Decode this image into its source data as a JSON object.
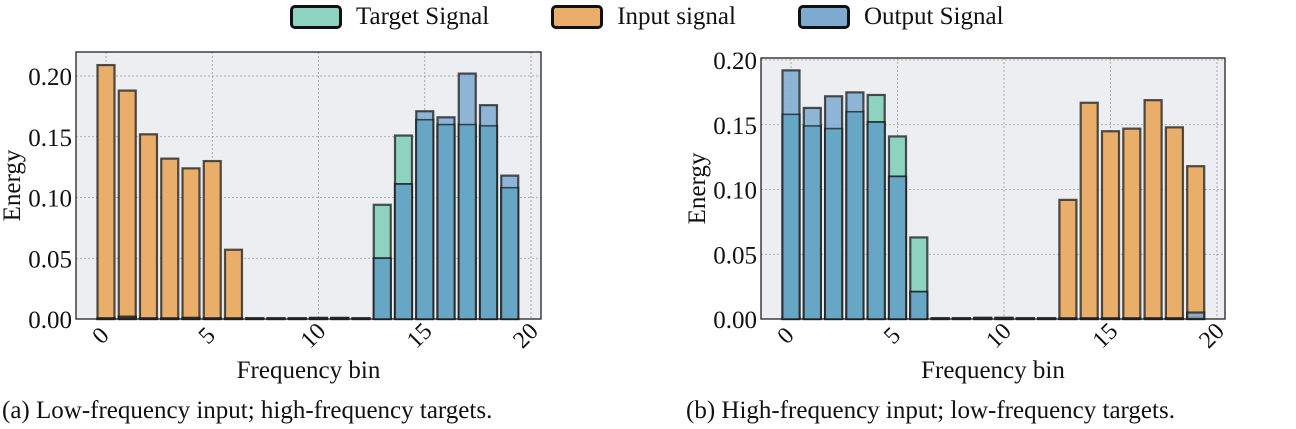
{
  "legend": {
    "items": [
      {
        "label": "Target Signal",
        "color": "#8dd3c0"
      },
      {
        "label": "Input signal",
        "color": "#e8ae6a"
      },
      {
        "label": "Output Signal",
        "color": "#7eaad0"
      }
    ]
  },
  "colors": {
    "target": "#8dd3c0",
    "input": "#e8ae6a",
    "output": "#7eaad0",
    "overlap": "#64a5c4",
    "axes_bg": "#eceef1",
    "edge": "#1a1a1a"
  },
  "chart_data": [
    {
      "type": "bar",
      "caption": "(a) Low-frequency input; high-frequency targets.",
      "xlabel": "Frequency bin",
      "ylabel": "Energy",
      "xlim": [
        -1.3,
        20.3
      ],
      "ylim": [
        0,
        0.22
      ],
      "xticks": [
        0,
        5,
        10,
        15,
        20
      ],
      "xtick_labels": [
        "0",
        "5",
        "10",
        "15",
        "20"
      ],
      "yticks": [
        0.0,
        0.05,
        0.1,
        0.15,
        0.2
      ],
      "ytick_labels": [
        "0.00",
        "0.05",
        "0.10",
        "0.15",
        "0.20"
      ],
      "grid": true,
      "x": [
        0,
        1,
        2,
        3,
        4,
        5,
        6,
        7,
        8,
        9,
        10,
        11,
        12,
        13,
        14,
        15,
        16,
        17,
        18,
        19
      ],
      "series": [
        {
          "name": "Input signal",
          "values": [
            0.209,
            0.188,
            0.152,
            0.132,
            0.124,
            0.13,
            0.057,
            0.0005,
            0.0005,
            0.0005,
            0.001,
            0.001,
            0.0005,
            0,
            0,
            0,
            0,
            0,
            0,
            0
          ]
        },
        {
          "name": "Target Signal",
          "values": [
            0,
            0.002,
            0,
            0,
            0.001,
            0,
            0,
            0,
            0,
            0,
            0,
            0,
            0,
            0.094,
            0.151,
            0.164,
            0.16,
            0.16,
            0.159,
            0.108
          ]
        },
        {
          "name": "Output Signal",
          "values": [
            0,
            0.001,
            0,
            0,
            0,
            0,
            0,
            0,
            0,
            0,
            0,
            0,
            0,
            0.05,
            0.111,
            0.171,
            0.166,
            0.202,
            0.176,
            0.118
          ]
        }
      ]
    },
    {
      "type": "bar",
      "caption": "(b) High-frequency input; low-frequency targets.",
      "xlabel": "Frequency bin",
      "ylabel": "Energy",
      "xlim": [
        -1.3,
        20.3
      ],
      "ylim": [
        0,
        0.2
      ],
      "xticks": [
        0,
        5,
        10,
        15,
        20
      ],
      "xtick_labels": [
        "0",
        "5",
        "10",
        "15",
        "20"
      ],
      "yticks": [
        0.0,
        0.05,
        0.1,
        0.15,
        0.2
      ],
      "ytick_labels": [
        "0.00",
        "0.05",
        "0.10",
        "0.15",
        "0.20"
      ],
      "grid": true,
      "x": [
        0,
        1,
        2,
        3,
        4,
        5,
        6,
        7,
        8,
        9,
        10,
        11,
        12,
        13,
        14,
        15,
        16,
        17,
        18,
        19
      ],
      "series": [
        {
          "name": "Input signal",
          "values": [
            0.001,
            0.001,
            0.001,
            0.001,
            0.001,
            0.001,
            0.005,
            0.0005,
            0.0005,
            0.001,
            0.001,
            0.0005,
            0.0005,
            0.092,
            0.167,
            0.145,
            0.147,
            0.169,
            0.148,
            0.118
          ]
        },
        {
          "name": "Target Signal",
          "values": [
            0.158,
            0.149,
            0.147,
            0.16,
            0.173,
            0.141,
            0.063,
            0,
            0,
            0,
            0,
            0,
            0,
            0,
            0,
            0,
            0,
            0,
            0,
            0.001
          ]
        },
        {
          "name": "Output Signal",
          "values": [
            0.192,
            0.163,
            0.172,
            0.175,
            0.152,
            0.11,
            0.021,
            0,
            0,
            0,
            0,
            0,
            0,
            0,
            0,
            0,
            0,
            0,
            0,
            0.005
          ]
        }
      ]
    }
  ]
}
